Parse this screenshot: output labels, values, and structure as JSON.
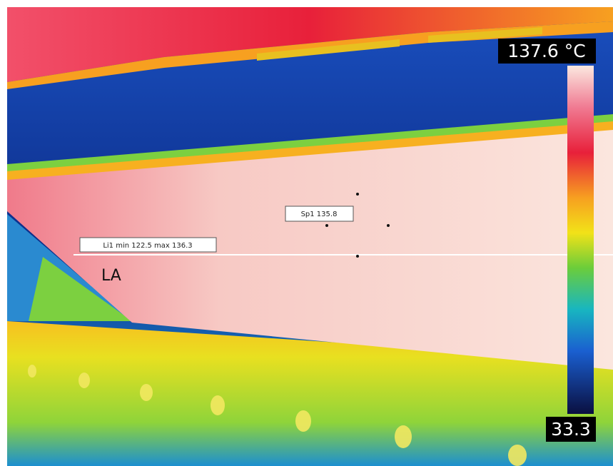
{
  "scale": {
    "max_label": "137.6 °C",
    "min_label": "33.3"
  },
  "spot": {
    "label": "Sp1 135.8"
  },
  "line": {
    "label": "Li1 min 122.5 max 136.3"
  },
  "area": {
    "label": "LA"
  }
}
